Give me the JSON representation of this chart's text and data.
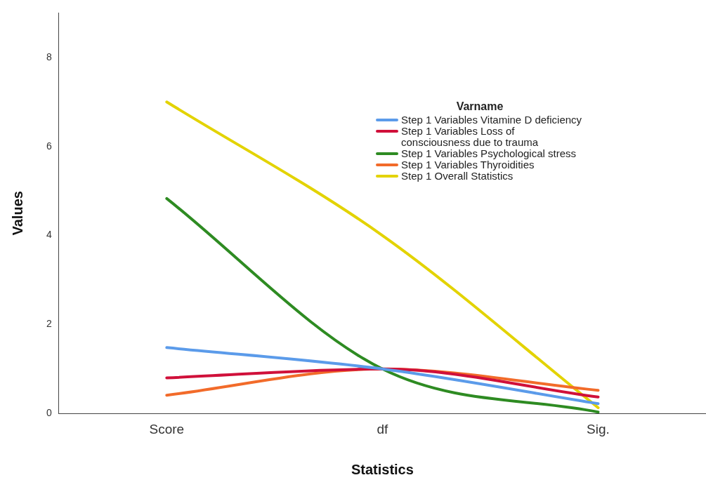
{
  "chart_data": {
    "type": "line",
    "xlabel": "Statistics",
    "ylabel": "Values",
    "legend_title": "Varname",
    "legend": "top right",
    "grid": false,
    "marker": "none",
    "line_style": "solid",
    "categories": [
      "Score",
      "df",
      "Sig."
    ],
    "ylim": [
      0,
      9
    ],
    "yticks": [
      0,
      2,
      4,
      6,
      8
    ],
    "series": [
      {
        "name": "Step 1 Variables Vitamine D deficiency",
        "color": "#5b9bea",
        "values": [
          1.48,
          1,
          0.22
        ]
      },
      {
        "name": "Step 1 Variables Loss of consciousness due to trauma",
        "color": "#d0103a",
        "values": [
          0.8,
          1,
          0.37
        ]
      },
      {
        "name": "Step 1 Variables Psychological stress",
        "color": "#2e8b22",
        "values": [
          4.83,
          1,
          0.03
        ]
      },
      {
        "name": "Step 1 Variables Thyroidities",
        "color": "#f26b2a",
        "values": [
          0.41,
          1,
          0.52
        ]
      },
      {
        "name": "Step 1 Overall Statistics",
        "color": "#e3d300",
        "values": [
          7,
          4,
          0.13
        ]
      }
    ]
  }
}
